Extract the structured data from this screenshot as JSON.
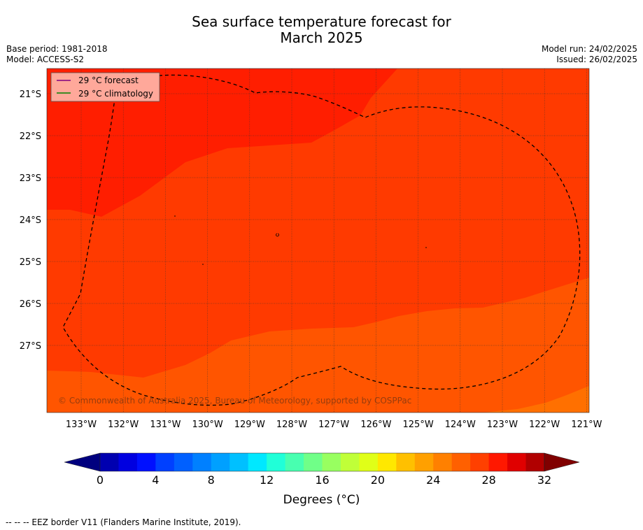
{
  "title_line1": "Sea surface temperature forecast for",
  "title_line2": "March 2025",
  "base_period": "Base period: 1981-2018",
  "model": "Model: ACCESS-S2",
  "model_run": "Model run: 24/02/2025",
  "issued": "Issued: 26/02/2025",
  "legend": {
    "forecast": "29 °C  forecast",
    "climatology": "29 °C  climatology",
    "forecast_color": "#800080",
    "climatology_color": "#008000"
  },
  "copyright": "© Commonwealth of Australia 2025, Bureau of Meteorology, supported by COSPPac",
  "lat_labels": [
    "21°S",
    "22°S",
    "23°S",
    "24°S",
    "25°S",
    "26°S",
    "27°S"
  ],
  "lon_labels": [
    "133°W",
    "132°W",
    "131°W",
    "130°W",
    "129°W",
    "128°W",
    "127°W",
    "126°W",
    "125°W",
    "124°W",
    "123°W",
    "122°W",
    "121°W"
  ],
  "colorbar": {
    "ticks": [
      "0",
      "4",
      "8",
      "12",
      "16",
      "20",
      "24",
      "28",
      "32"
    ],
    "label": "Degrees (°C)",
    "colors": [
      "#00007f",
      "#0000b0",
      "#0000e0",
      "#0010ff",
      "#0040ff",
      "#0060ff",
      "#0080ff",
      "#00a0ff",
      "#00c0ff",
      "#00e8ff",
      "#20ffd8",
      "#48ffb0",
      "#70ff88",
      "#98ff60",
      "#c0ff38",
      "#e0ff18",
      "#ffe800",
      "#ffc000",
      "#ffa000",
      "#ff8000",
      "#ff6000",
      "#ff4000",
      "#ff1800",
      "#e00000",
      "#b00000",
      "#800000"
    ]
  },
  "field_colors": {
    "t31": "#ff1e00",
    "t30": "#ff3a00",
    "t29": "#ff5500",
    "t28": "#ff7000"
  },
  "footer": "--  --  -- EEZ border V11 (Flanders Marine Institute, 2019)."
}
